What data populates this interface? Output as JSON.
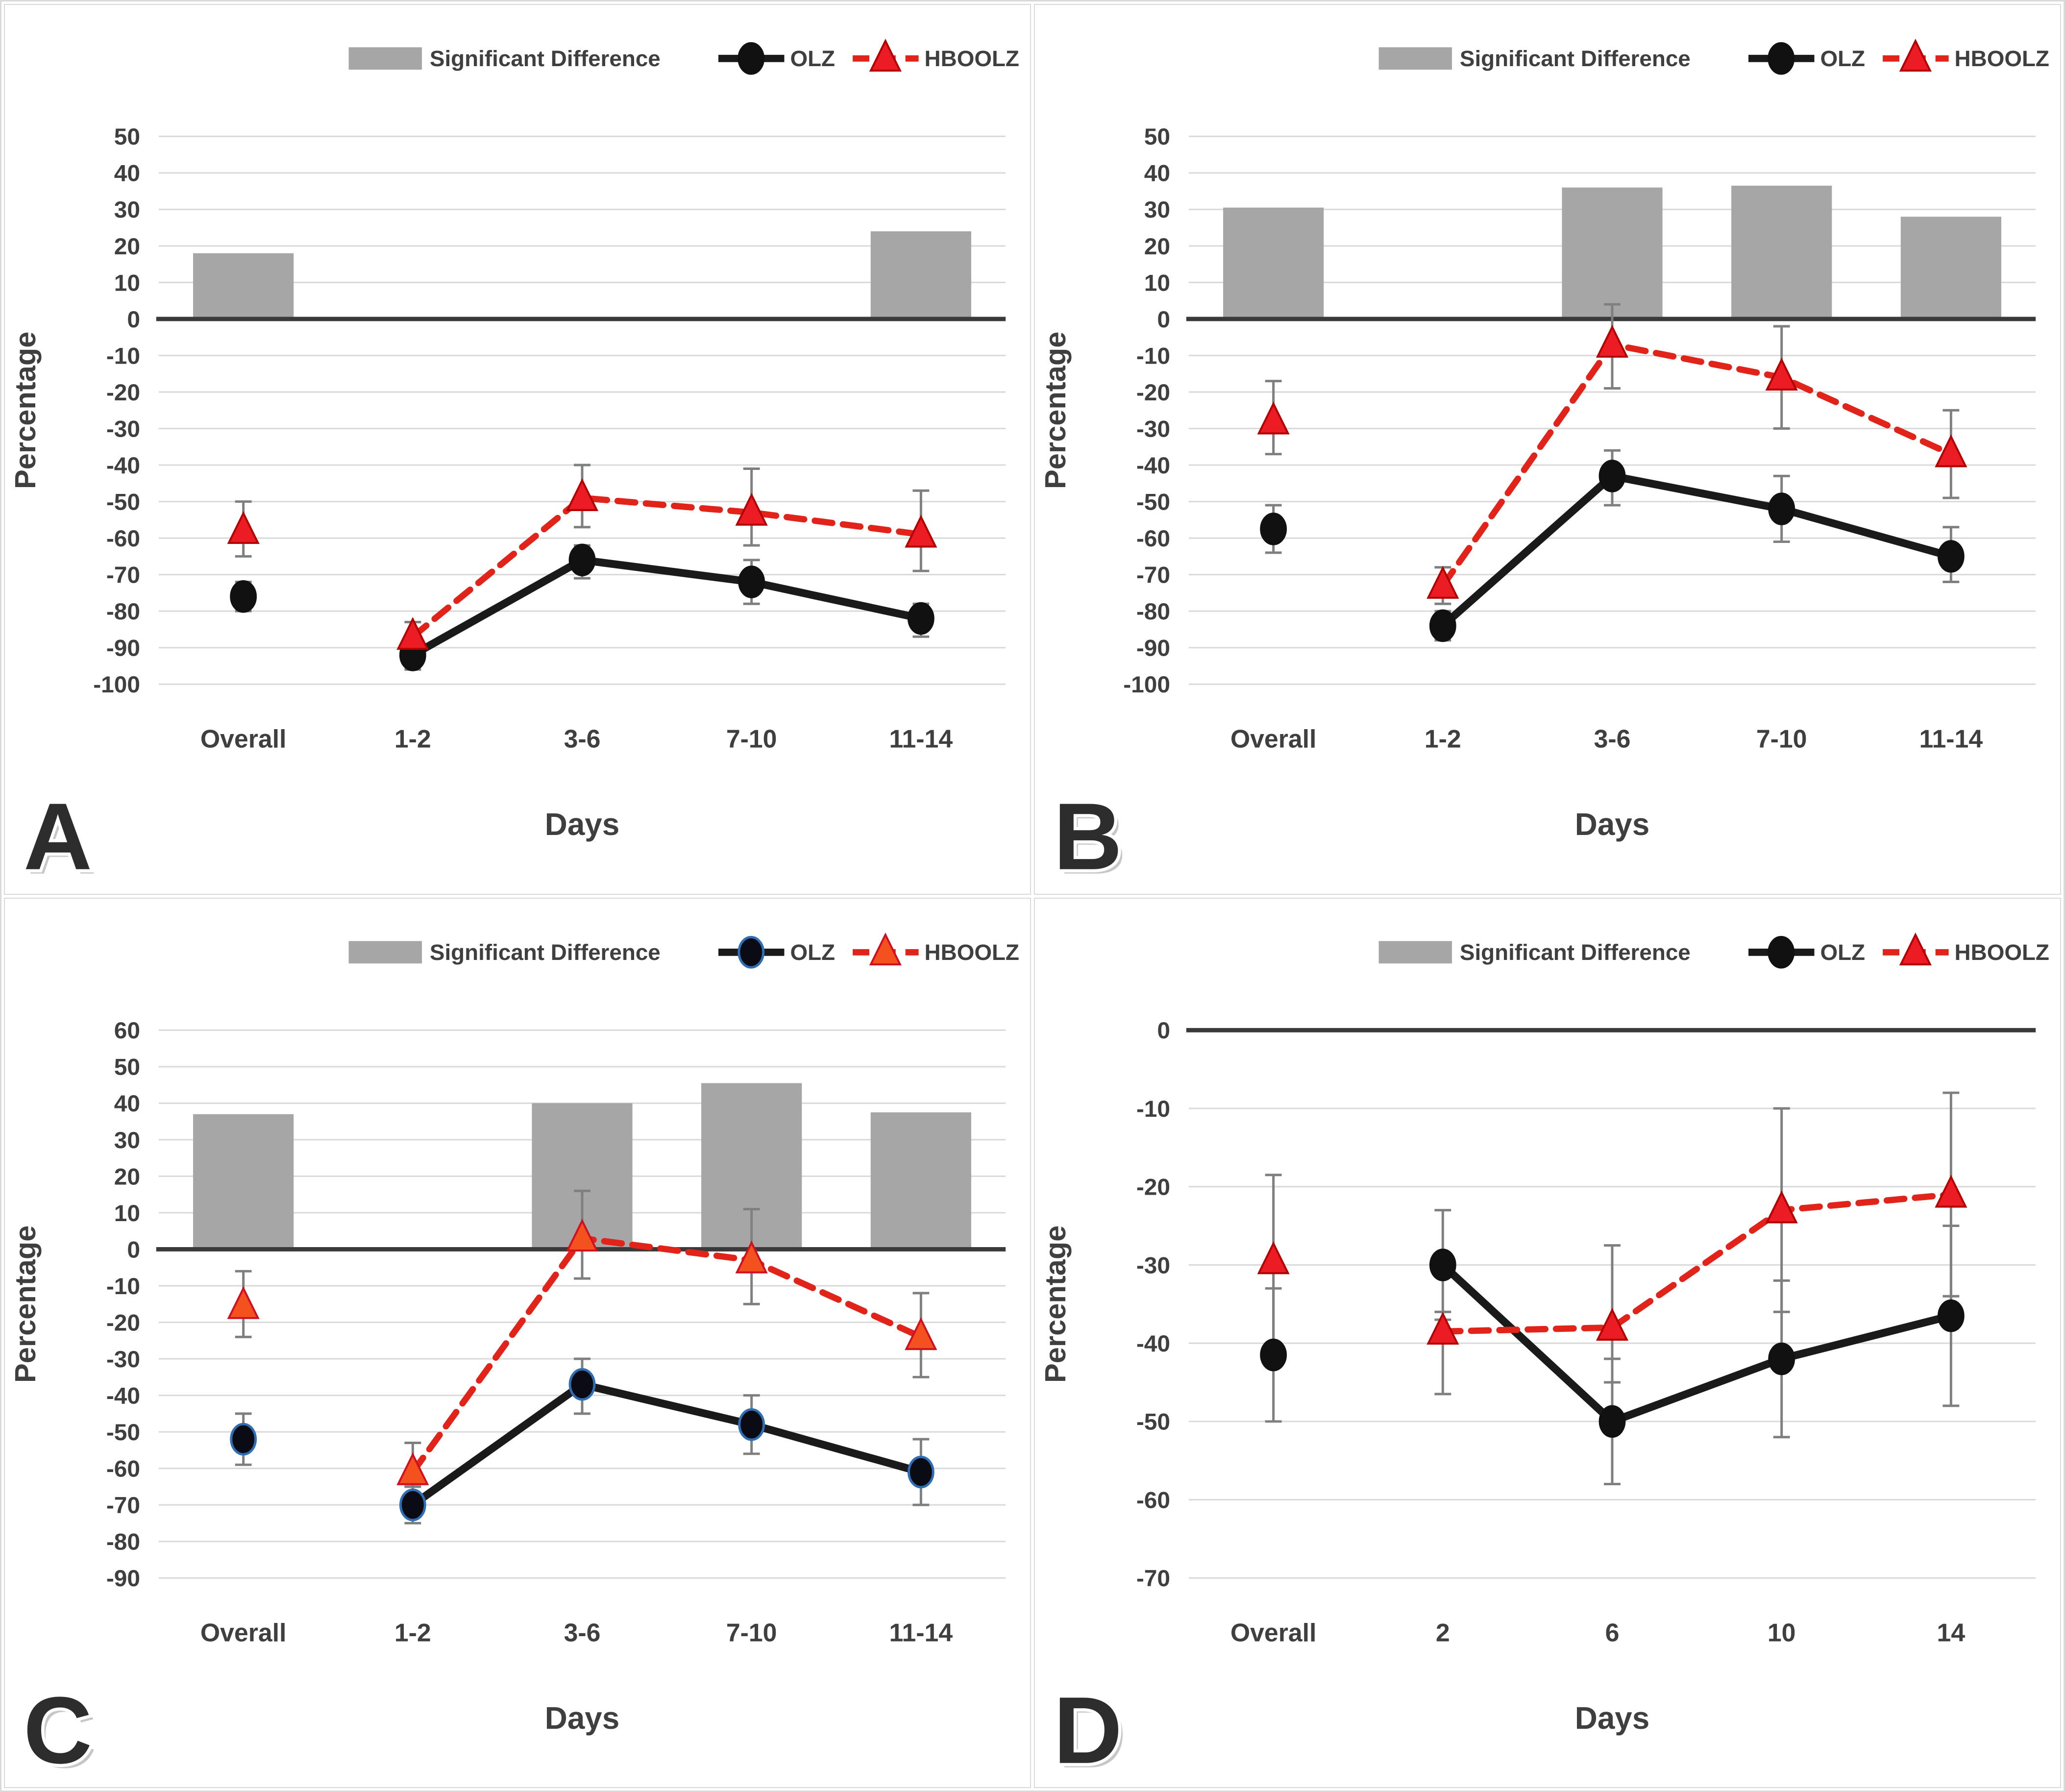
{
  "figure": {
    "background": "#ffffff",
    "panel_border": "#d9d9d9",
    "ylabel": "Percentage",
    "xlabel": "Days"
  },
  "legend": {
    "significant_label": "Significant Difference",
    "olz_label": "OLZ",
    "hboolz_label": "HBOOLZ"
  },
  "colors": {
    "grid": "#d9d9d9",
    "axis": "#3a3a3a",
    "tick_text": "#3f3f3f",
    "bar": "#a6a6a6",
    "error_bar": "#7f7f7f",
    "olz_line": "#1a1a1a",
    "hboolz_line": "#e2231a",
    "letter_fill": "#2d2d2d",
    "letter_outline": "#ffffff"
  },
  "chart_data": [
    {
      "id": "A",
      "type": "bar+line",
      "xlabel": "Days",
      "ylabel": "Percentage",
      "ylim": [
        -100,
        50
      ],
      "ytick_step": 10,
      "grid": true,
      "legend_position": "top",
      "categories": [
        "Overall",
        "1-2",
        "3-6",
        "7-10",
        "11-14"
      ],
      "bars": {
        "name": "Significant Difference",
        "values": [
          18,
          null,
          null,
          null,
          24
        ]
      },
      "series": [
        {
          "name": "OLZ",
          "style": "solid",
          "marker": "circle",
          "line_color": "#1a1a1a",
          "marker_fill": "#111111",
          "marker_stroke": "#111111",
          "values": [
            -76,
            -92,
            -66,
            -72,
            -82
          ],
          "error": [
            [
              -80,
              -72
            ],
            [
              -96,
              -88
            ],
            [
              -71,
              -62
            ],
            [
              -78,
              -66
            ],
            [
              -87,
              -78
            ]
          ]
        },
        {
          "name": "HBOOLZ",
          "style": "dashed",
          "marker": "triangle",
          "line_color": "#e2231a",
          "marker_fill": "#ec1c24",
          "marker_stroke": "#b30000",
          "values": [
            -58,
            -87,
            -49,
            -53,
            -59
          ],
          "error": [
            [
              -65,
              -50
            ],
            [
              -91,
              -83
            ],
            [
              -57,
              -40
            ],
            [
              -62,
              -41
            ],
            [
              -69,
              -47
            ]
          ]
        }
      ]
    },
    {
      "id": "B",
      "type": "bar+line",
      "xlabel": "Days",
      "ylabel": "Percentage",
      "ylim": [
        -100,
        50
      ],
      "ytick_step": 10,
      "grid": true,
      "legend_position": "top",
      "categories": [
        "Overall",
        "1-2",
        "3-6",
        "7-10",
        "11-14"
      ],
      "bars": {
        "name": "Significant Difference",
        "values": [
          30.5,
          null,
          36,
          36.5,
          28
        ]
      },
      "series": [
        {
          "name": "OLZ",
          "style": "solid",
          "marker": "circle",
          "line_color": "#1a1a1a",
          "marker_fill": "#111111",
          "marker_stroke": "#111111",
          "values": [
            -57.5,
            -84,
            -43,
            -52,
            -65
          ],
          "error": [
            [
              -64,
              -51
            ],
            [
              -88,
              -80
            ],
            [
              -51,
              -36
            ],
            [
              -61,
              -43
            ],
            [
              -72,
              -57
            ]
          ]
        },
        {
          "name": "HBOOLZ",
          "style": "dashed",
          "marker": "triangle",
          "line_color": "#e2231a",
          "marker_fill": "#ec1c24",
          "marker_stroke": "#b30000",
          "values": [
            -28,
            -73,
            -7,
            -16,
            -37
          ],
          "error": [
            [
              -37,
              -17
            ],
            [
              -78,
              -68
            ],
            [
              -19,
              4
            ],
            [
              -30,
              -2
            ],
            [
              -49,
              -25
            ]
          ]
        }
      ]
    },
    {
      "id": "C",
      "type": "bar+line",
      "xlabel": "Days",
      "ylabel": "Percentage",
      "ylim": [
        -90,
        60
      ],
      "ytick_step": 10,
      "grid": true,
      "legend_position": "top",
      "categories": [
        "Overall",
        "1-2",
        "3-6",
        "7-10",
        "11-14"
      ],
      "bars": {
        "name": "Significant Difference",
        "values": [
          37,
          null,
          40,
          45.5,
          37.5
        ]
      },
      "series": [
        {
          "name": "OLZ",
          "style": "solid",
          "marker": "circle",
          "line_color": "#1a1a1a",
          "marker_fill": "#0b0b14",
          "marker_stroke": "#2f6db5",
          "values": [
            -52,
            -70,
            -37,
            -48,
            -61
          ],
          "error": [
            [
              -59,
              -45
            ],
            [
              -75,
              -65
            ],
            [
              -45,
              -30
            ],
            [
              -56,
              -40
            ],
            [
              -70,
              -52
            ]
          ]
        },
        {
          "name": "HBOOLZ",
          "style": "dashed",
          "marker": "triangle",
          "line_color": "#e2231a",
          "marker_fill": "#f3511e",
          "marker_stroke": "#cf1020",
          "values": [
            -15.5,
            -61,
            3,
            -3,
            -24
          ],
          "error": [
            [
              -24,
              -6
            ],
            [
              -65,
              -53
            ],
            [
              -8,
              16
            ],
            [
              -15,
              11
            ],
            [
              -35,
              -12
            ]
          ]
        }
      ]
    },
    {
      "id": "D",
      "type": "bar+line",
      "xlabel": "Days",
      "ylabel": "Percentage",
      "ylim": [
        -70,
        0
      ],
      "ytick_step": 10,
      "grid": true,
      "legend_position": "top",
      "categories": [
        "Overall",
        "2",
        "6",
        "10",
        "14"
      ],
      "bars": {
        "name": "Significant Difference",
        "values": [
          null,
          null,
          null,
          null,
          null
        ]
      },
      "series": [
        {
          "name": "OLZ",
          "style": "solid",
          "marker": "circle",
          "line_color": "#1a1a1a",
          "marker_fill": "#111111",
          "marker_stroke": "#111111",
          "values": [
            -41.5,
            -30,
            -50,
            -42,
            -36.5
          ],
          "error": [
            [
              -50,
              -33
            ],
            [
              -37,
              -23
            ],
            [
              -58,
              -42
            ],
            [
              -52,
              -32
            ],
            [
              -48,
              -25
            ]
          ]
        },
        {
          "name": "HBOOLZ",
          "style": "dashed",
          "marker": "triangle",
          "line_color": "#e2231a",
          "marker_fill": "#ec1c24",
          "marker_stroke": "#b30000",
          "values": [
            -29.5,
            -38.5,
            -38,
            -23,
            -21
          ],
          "error": [
            [
              -41,
              -18.5
            ],
            [
              -46.5,
              -36
            ],
            [
              -45,
              -27.5
            ],
            [
              -36,
              -10
            ],
            [
              -34,
              -8
            ]
          ]
        }
      ]
    }
  ]
}
